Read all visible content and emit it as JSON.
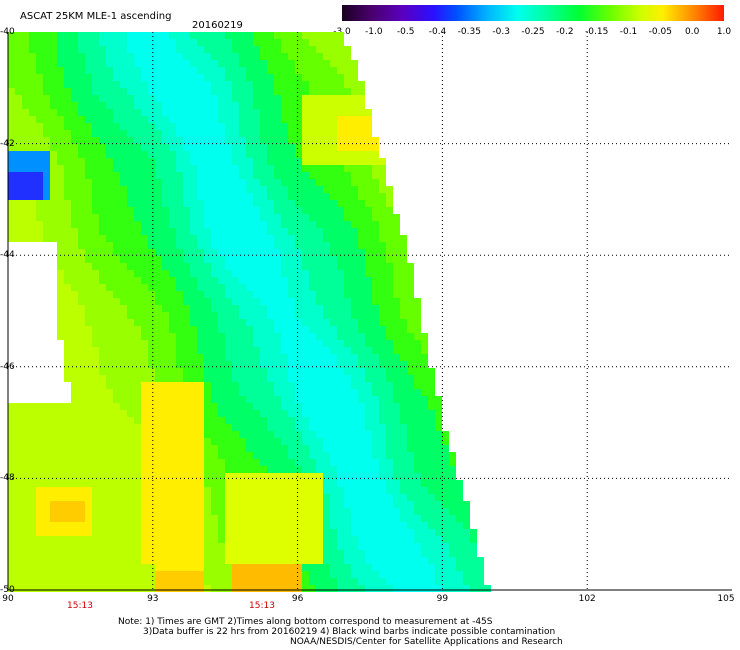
{
  "header": {
    "title": "ASCAT 25KM MLE-1 ascending",
    "date": "20160219"
  },
  "colorbar": {
    "ticks": [
      "-3.0",
      "-1.0",
      "-0.5",
      "-0.4",
      "-0.35",
      "-0.3",
      "-0.25",
      "-0.2",
      "-0.15",
      "-0.1",
      "-0.05",
      "0.0",
      "1.0"
    ],
    "colors": [
      "#2a0040",
      "#5a0088",
      "#2a00ff",
      "#0050ff",
      "#00aaff",
      "#00ffee",
      "#00ff9a",
      "#00ff33",
      "#66ff00",
      "#ccff00",
      "#ffee00",
      "#ff8800",
      "#ff1a00"
    ]
  },
  "map": {
    "lat_labels": [
      "-40",
      "-42",
      "-44",
      "-46",
      "-48",
      "-50"
    ],
    "lon_labels": [
      "90",
      "93",
      "96",
      "99",
      "102",
      "105"
    ],
    "time_labels": [
      "15:13",
      "15:13"
    ]
  },
  "notes": {
    "line1": "Note: 1) Times are GMT 2)Times along bottom correspond to measurement at -45S",
    "line2": "3)Data buffer is 22 hrs from 20160219 4) Black wind barbs indicate possible contamination",
    "line3": "NOAA/NESDIS/Center for Satellite Applications and Research"
  }
}
